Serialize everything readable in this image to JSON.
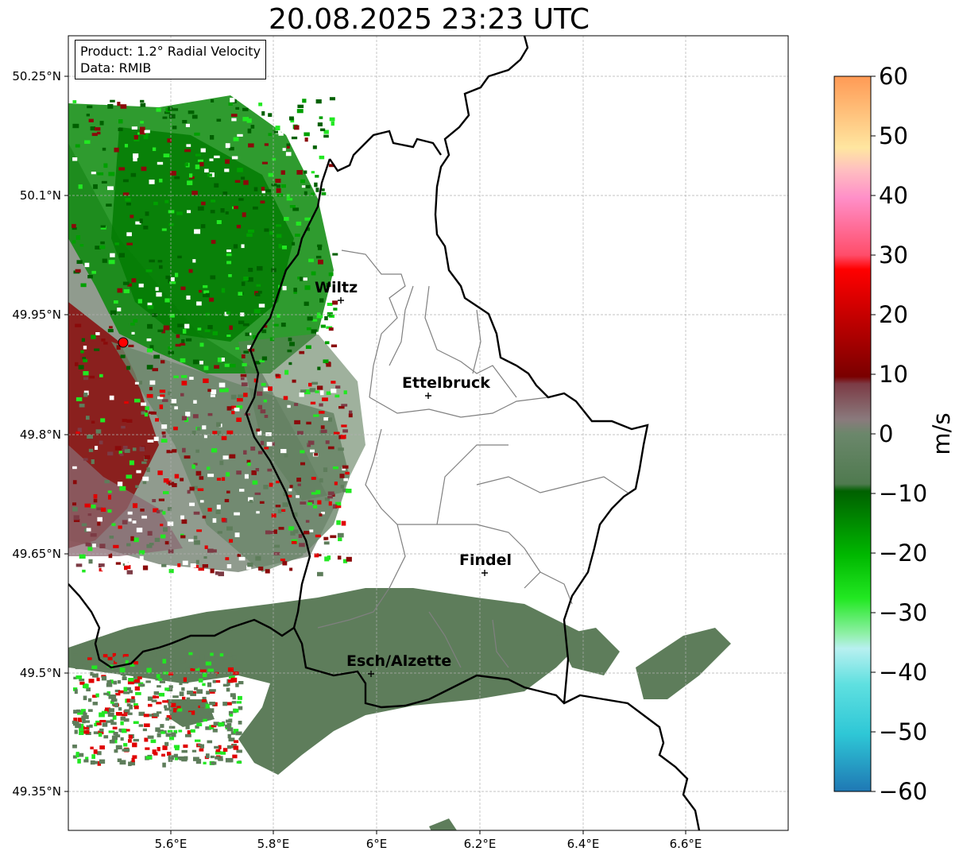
{
  "title": "20.08.2025 23:23 UTC",
  "info": {
    "line1": "Product: 1.2° Radial Velocity",
    "line2": "Data: RMIB"
  },
  "axes": {
    "lon_ticks": [
      "5.6°E",
      "5.8°E",
      "6°E",
      "6.2°E",
      "6.4°E",
      "6.6°E"
    ],
    "lat_ticks": [
      "50.25°N",
      "50.1°N",
      "49.95°N",
      "49.8°N",
      "49.65°N",
      "49.5°N",
      "49.35°N"
    ]
  },
  "cities": [
    {
      "name": "Wiltz"
    },
    {
      "name": "Ettelbruck"
    },
    {
      "name": "Findel"
    },
    {
      "name": "Esch/Alzette"
    }
  ],
  "colorbar": {
    "unit": "m/s",
    "ticks": [
      "60",
      "50",
      "40",
      "30",
      "20",
      "10",
      "0",
      "−10",
      "−20",
      "−30",
      "−40",
      "−50",
      "−60"
    ],
    "range": [
      -60,
      60
    ]
  },
  "colors": {
    "approach_green": "#008000",
    "recede_red": "#8b0000",
    "near_zero_gray_green": "#5e7d5b",
    "radar_marker": "#ff0000"
  }
}
